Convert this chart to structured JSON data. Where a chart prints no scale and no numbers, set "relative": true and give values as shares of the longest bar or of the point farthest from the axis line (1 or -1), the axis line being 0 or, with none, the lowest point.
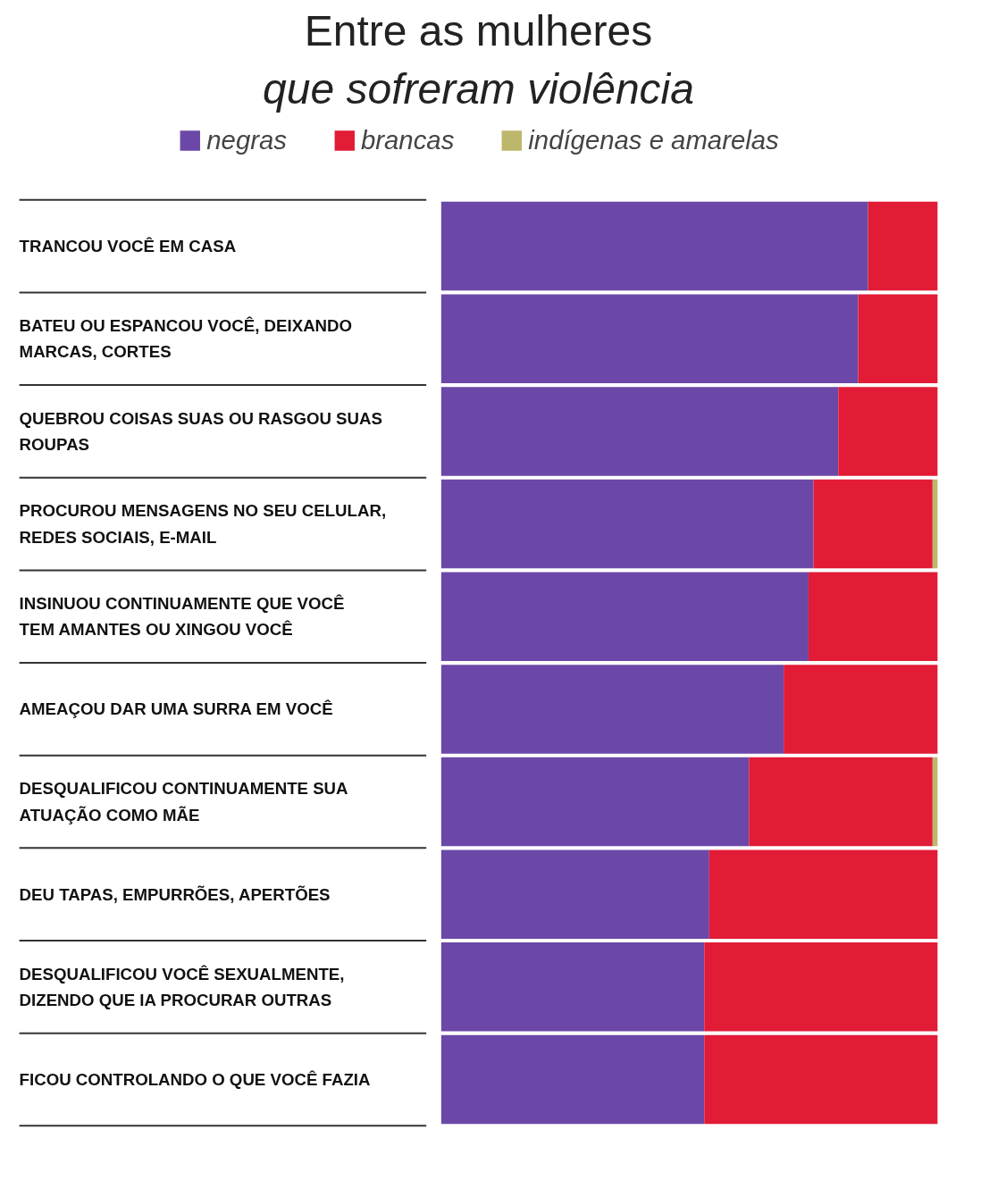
{
  "chart_data": {
    "type": "bar",
    "orientation": "horizontal",
    "stacked": true,
    "relative": true,
    "title": "Entre as mulheres",
    "subtitle": "que sofreram violência",
    "categories": [
      "TRANCOU VOCÊ EM CASA",
      "BATEU OU ESPANCOU VOCÊ, DEIXANDO MARCAS, CORTES",
      "QUEBROU COISAS SUAS OU RASGOU SUAS ROUPAS",
      "PROCUROU MENSAGENS NO SEU CELULAR, REDES SOCIAIS, E-MAIL",
      "INSINUOU CONTINUAMENTE QUE VOCÊ TEM AMANTES OU XINGOU VOCÊ",
      "AMEAÇOU DAR UMA SURRA EM VOCÊ",
      "DESQUALIFICOU CONTINUAMENTE SUA ATUAÇÃO COMO MÃE",
      "DEU TAPAS, EMPURRÕES, APERTÕES",
      "DESQUALIFICOU VOCÊ SEXUALMENTE, DIZENDO QUE IA PROCURAR OUTRAS",
      "FICOU CONTROLANDO O QUE VOCÊ FAZIA"
    ],
    "series": [
      {
        "name": "negras",
        "color": "#6b48a8",
        "values": [
          0.86,
          0.84,
          0.8,
          0.75,
          0.74,
          0.69,
          0.62,
          0.54,
          0.53,
          0.53
        ]
      },
      {
        "name": "brancas",
        "color": "#e21b36",
        "values": [
          0.14,
          0.16,
          0.2,
          0.24,
          0.26,
          0.31,
          0.37,
          0.46,
          0.47,
          0.47
        ]
      },
      {
        "name": "indígenas e amarelas",
        "color": "#bdb76b",
        "values": [
          null,
          null,
          null,
          0.01,
          null,
          null,
          0.01,
          null,
          null,
          null
        ]
      }
    ],
    "legend": "top",
    "grid": false
  }
}
